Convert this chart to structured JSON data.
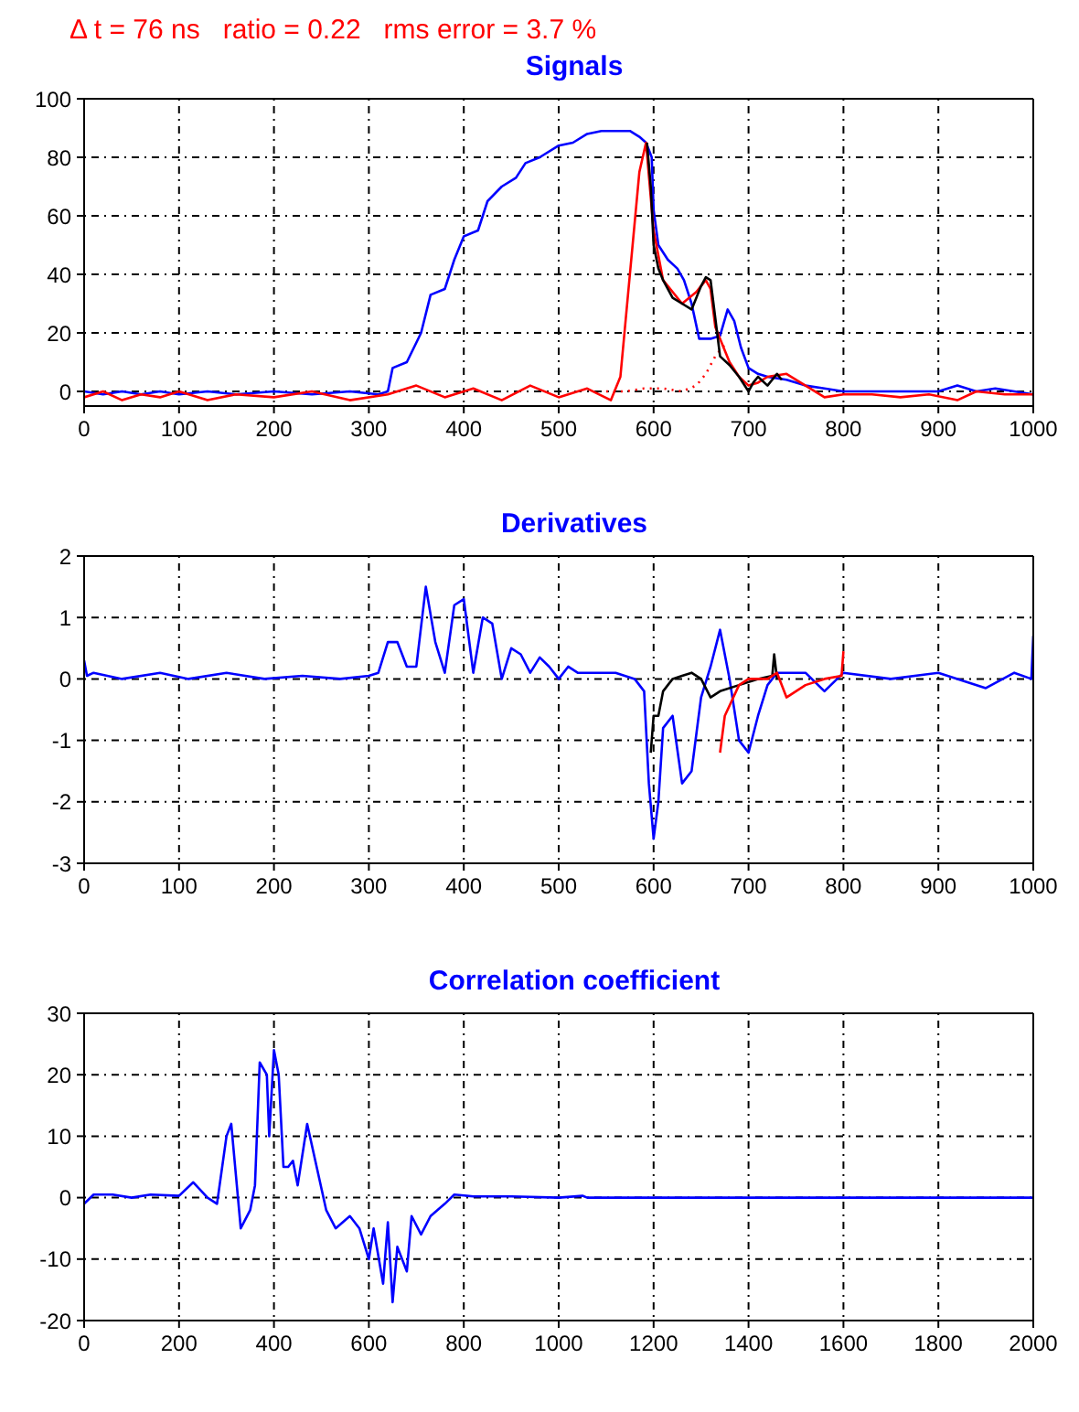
{
  "chart_data": [
    {
      "type": "line",
      "title": "Δ t = 76 ns   ratio = 0.22   rms error = 3.7 %",
      "subtitle": "Signals",
      "xlim": [
        0,
        1000
      ],
      "xticks": [
        0,
        100,
        200,
        300,
        400,
        500,
        600,
        700,
        800,
        900,
        1000
      ],
      "ylim": [
        -5,
        100
      ],
      "yticks": [
        0,
        20,
        40,
        60,
        80,
        100
      ],
      "grid": true,
      "series": [
        {
          "color": "#0000ff",
          "x": [
            0,
            20,
            40,
            60,
            80,
            100,
            130,
            160,
            200,
            240,
            280,
            310,
            320,
            325,
            340,
            355,
            365,
            380,
            390,
            400,
            415,
            425,
            440,
            455,
            465,
            480,
            500,
            515,
            530,
            545,
            560,
            575,
            585,
            592,
            598,
            600,
            605,
            615,
            625,
            632,
            640,
            648,
            660,
            670,
            678,
            685,
            692,
            700,
            710,
            720,
            740,
            760,
            780,
            800,
            830,
            860,
            900,
            920,
            940,
            960,
            980,
            1000
          ],
          "values": [
            0,
            -1,
            0,
            -1,
            0,
            -1,
            0,
            -1,
            0,
            -1,
            0,
            -1,
            0,
            8,
            10,
            20,
            33,
            35,
            45,
            53,
            55,
            65,
            70,
            73,
            78,
            80,
            84,
            85,
            88,
            89,
            89,
            89,
            87,
            85,
            80,
            62,
            50,
            45,
            42,
            38,
            30,
            18,
            18,
            19,
            28,
            24,
            15,
            8,
            6,
            5,
            4,
            2,
            1,
            0,
            0,
            0,
            0,
            2,
            0,
            1,
            0,
            -1
          ]
        },
        {
          "color": "#ff0000",
          "x": [
            0,
            20,
            40,
            60,
            80,
            100,
            130,
            160,
            200,
            240,
            280,
            320,
            350,
            380,
            410,
            440,
            470,
            500,
            530,
            555,
            565,
            575,
            585,
            592,
            600,
            610,
            630,
            645,
            655,
            660,
            665,
            670,
            680,
            690,
            700,
            710,
            720,
            740,
            760,
            780,
            800,
            830,
            860,
            890,
            920,
            940,
            970,
            1000
          ],
          "values": [
            -2,
            0,
            -3,
            -1,
            -2,
            0,
            -3,
            -1,
            -2,
            0,
            -3,
            -1,
            2,
            -2,
            1,
            -3,
            2,
            -2,
            1,
            -3,
            5,
            40,
            75,
            85,
            55,
            38,
            30,
            34,
            38,
            35,
            22,
            18,
            10,
            5,
            2,
            3,
            5,
            6,
            2,
            -2,
            -1,
            -1,
            -2,
            -1,
            -3,
            0,
            -1,
            -1
          ]
        },
        {
          "color": "#ff0000",
          "line_style": "dotted",
          "x": [
            550,
            570,
            590,
            610,
            630,
            645,
            655,
            665,
            675
          ],
          "values": [
            0,
            0,
            1,
            1,
            0,
            2,
            6,
            12,
            16
          ]
        },
        {
          "color": "#000000",
          "x": [
            593,
            597,
            600,
            605,
            610,
            620,
            630,
            640,
            650,
            655,
            660,
            665,
            670,
            680,
            690,
            700,
            705,
            710,
            720,
            730,
            735
          ],
          "values": [
            85,
            70,
            50,
            42,
            38,
            32,
            30,
            28,
            36,
            39,
            38,
            25,
            12,
            9,
            5,
            0,
            3,
            5,
            2,
            6,
            4
          ]
        }
      ]
    },
    {
      "type": "line",
      "title": "Derivatives",
      "xlim": [
        0,
        1000
      ],
      "xticks": [
        0,
        100,
        200,
        300,
        400,
        500,
        600,
        700,
        800,
        900,
        1000
      ],
      "ylim": [
        -3,
        2
      ],
      "yticks": [
        -3,
        -2,
        -1,
        0,
        1,
        2
      ],
      "grid": true,
      "series": [
        {
          "color": "#0000ff",
          "x": [
            0,
            3,
            10,
            40,
            80,
            110,
            150,
            190,
            230,
            270,
            300,
            310,
            320,
            330,
            340,
            350,
            360,
            370,
            380,
            390,
            400,
            410,
            420,
            430,
            440,
            450,
            460,
            470,
            480,
            490,
            500,
            510,
            520,
            560,
            580,
            590,
            595,
            600,
            605,
            610,
            620,
            630,
            640,
            650,
            660,
            670,
            680,
            690,
            700,
            710,
            720,
            730,
            760,
            780,
            800,
            850,
            900,
            950,
            980,
            998,
            1000
          ],
          "values": [
            0.3,
            0.05,
            0.1,
            0.0,
            0.1,
            0.0,
            0.1,
            0.0,
            0.05,
            0.0,
            0.05,
            0.1,
            0.6,
            0.6,
            0.2,
            0.2,
            1.5,
            0.6,
            0.1,
            1.2,
            1.3,
            0.1,
            1.0,
            0.9,
            0.0,
            0.5,
            0.4,
            0.1,
            0.35,
            0.2,
            0.0,
            0.2,
            0.1,
            0.1,
            0.0,
            -0.2,
            -1.7,
            -2.6,
            -2.0,
            -0.8,
            -0.6,
            -1.7,
            -1.5,
            -0.3,
            0.2,
            0.8,
            0.0,
            -1.0,
            -1.2,
            -0.6,
            -0.1,
            0.1,
            0.1,
            -0.2,
            0.1,
            0.0,
            0.1,
            -0.15,
            0.1,
            0.0,
            0.7
          ]
        },
        {
          "color": "#000000",
          "x": [
            597,
            600,
            605,
            610,
            620,
            630,
            640,
            650,
            660,
            670,
            690,
            710,
            725,
            727,
            730
          ],
          "values": [
            -1.2,
            -0.6,
            -0.6,
            -0.2,
            0.0,
            0.05,
            0.1,
            0.0,
            -0.3,
            -0.2,
            -0.1,
            0.0,
            0.05,
            0.4,
            0.0
          ]
        },
        {
          "color": "#ff0000",
          "x": [
            670,
            675,
            690,
            700,
            720,
            730,
            740,
            750,
            760,
            780,
            798,
            800
          ],
          "values": [
            -1.2,
            -0.6,
            -0.1,
            0.0,
            0.0,
            0.1,
            -0.3,
            -0.2,
            -0.1,
            0.0,
            0.05,
            0.45
          ]
        }
      ]
    },
    {
      "type": "line",
      "title": "Correlation coefficient",
      "xlim": [
        0,
        2000
      ],
      "xticks": [
        0,
        200,
        400,
        600,
        800,
        1000,
        1200,
        1400,
        1600,
        1800,
        2000
      ],
      "ylim": [
        -20,
        30
      ],
      "yticks": [
        -20,
        -10,
        0,
        10,
        20,
        30
      ],
      "grid": true,
      "series": [
        {
          "color": "#0000ff",
          "x": [
            0,
            20,
            60,
            100,
            140,
            200,
            230,
            260,
            280,
            300,
            310,
            330,
            350,
            360,
            370,
            385,
            390,
            400,
            410,
            420,
            430,
            440,
            450,
            470,
            490,
            510,
            530,
            560,
            580,
            600,
            610,
            630,
            640,
            650,
            660,
            680,
            690,
            710,
            730,
            760,
            780,
            820,
            900,
            1000,
            1050,
            1060,
            2000
          ],
          "values": [
            -1,
            0.5,
            0.5,
            0,
            0.5,
            0.3,
            2.5,
            0,
            -1,
            10,
            12,
            -5,
            -2,
            2,
            22,
            20,
            10,
            24,
            20,
            5,
            5,
            6,
            2,
            12,
            5,
            -2,
            -5,
            -3,
            -5,
            -10,
            -5,
            -14,
            -4,
            -17,
            -8,
            -12,
            -3,
            -6,
            -3,
            -1,
            0.5,
            0.2,
            0.2,
            0,
            0.3,
            0,
            0
          ]
        }
      ]
    }
  ]
}
